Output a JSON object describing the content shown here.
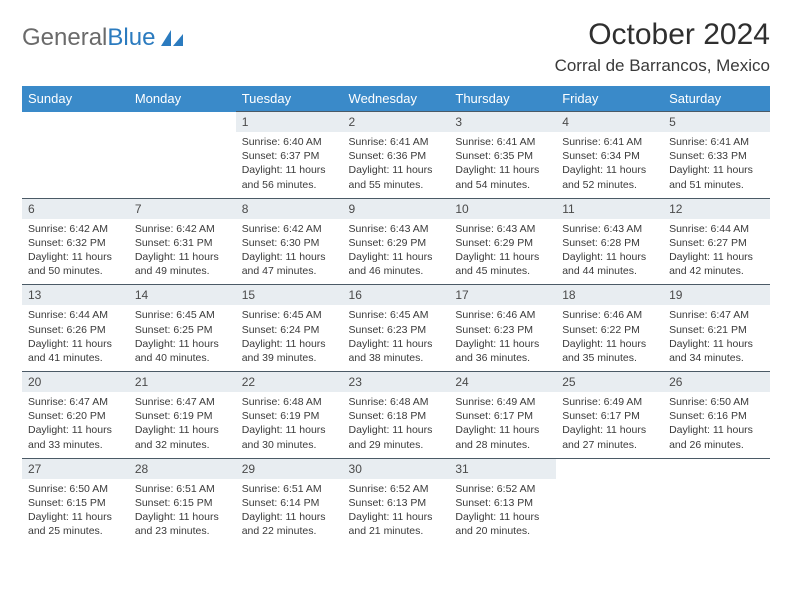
{
  "logo": {
    "text1": "General",
    "text2": "Blue"
  },
  "title": "October 2024",
  "location": "Corral de Barrancos, Mexico",
  "colors": {
    "header_bg": "#3a8ac9",
    "header_text": "#ffffff",
    "daynum_bg": "#e8edf1",
    "border": "#4b5a66",
    "logo_gray": "#6a6a6a",
    "logo_blue": "#2b7bbf"
  },
  "weekdays": [
    "Sunday",
    "Monday",
    "Tuesday",
    "Wednesday",
    "Thursday",
    "Friday",
    "Saturday"
  ],
  "weeks": [
    [
      null,
      null,
      {
        "n": "1",
        "sr": "Sunrise: 6:40 AM",
        "ss": "Sunset: 6:37 PM",
        "d1": "Daylight: 11 hours",
        "d2": "and 56 minutes."
      },
      {
        "n": "2",
        "sr": "Sunrise: 6:41 AM",
        "ss": "Sunset: 6:36 PM",
        "d1": "Daylight: 11 hours",
        "d2": "and 55 minutes."
      },
      {
        "n": "3",
        "sr": "Sunrise: 6:41 AM",
        "ss": "Sunset: 6:35 PM",
        "d1": "Daylight: 11 hours",
        "d2": "and 54 minutes."
      },
      {
        "n": "4",
        "sr": "Sunrise: 6:41 AM",
        "ss": "Sunset: 6:34 PM",
        "d1": "Daylight: 11 hours",
        "d2": "and 52 minutes."
      },
      {
        "n": "5",
        "sr": "Sunrise: 6:41 AM",
        "ss": "Sunset: 6:33 PM",
        "d1": "Daylight: 11 hours",
        "d2": "and 51 minutes."
      }
    ],
    [
      {
        "n": "6",
        "sr": "Sunrise: 6:42 AM",
        "ss": "Sunset: 6:32 PM",
        "d1": "Daylight: 11 hours",
        "d2": "and 50 minutes."
      },
      {
        "n": "7",
        "sr": "Sunrise: 6:42 AM",
        "ss": "Sunset: 6:31 PM",
        "d1": "Daylight: 11 hours",
        "d2": "and 49 minutes."
      },
      {
        "n": "8",
        "sr": "Sunrise: 6:42 AM",
        "ss": "Sunset: 6:30 PM",
        "d1": "Daylight: 11 hours",
        "d2": "and 47 minutes."
      },
      {
        "n": "9",
        "sr": "Sunrise: 6:43 AM",
        "ss": "Sunset: 6:29 PM",
        "d1": "Daylight: 11 hours",
        "d2": "and 46 minutes."
      },
      {
        "n": "10",
        "sr": "Sunrise: 6:43 AM",
        "ss": "Sunset: 6:29 PM",
        "d1": "Daylight: 11 hours",
        "d2": "and 45 minutes."
      },
      {
        "n": "11",
        "sr": "Sunrise: 6:43 AM",
        "ss": "Sunset: 6:28 PM",
        "d1": "Daylight: 11 hours",
        "d2": "and 44 minutes."
      },
      {
        "n": "12",
        "sr": "Sunrise: 6:44 AM",
        "ss": "Sunset: 6:27 PM",
        "d1": "Daylight: 11 hours",
        "d2": "and 42 minutes."
      }
    ],
    [
      {
        "n": "13",
        "sr": "Sunrise: 6:44 AM",
        "ss": "Sunset: 6:26 PM",
        "d1": "Daylight: 11 hours",
        "d2": "and 41 minutes."
      },
      {
        "n": "14",
        "sr": "Sunrise: 6:45 AM",
        "ss": "Sunset: 6:25 PM",
        "d1": "Daylight: 11 hours",
        "d2": "and 40 minutes."
      },
      {
        "n": "15",
        "sr": "Sunrise: 6:45 AM",
        "ss": "Sunset: 6:24 PM",
        "d1": "Daylight: 11 hours",
        "d2": "and 39 minutes."
      },
      {
        "n": "16",
        "sr": "Sunrise: 6:45 AM",
        "ss": "Sunset: 6:23 PM",
        "d1": "Daylight: 11 hours",
        "d2": "and 38 minutes."
      },
      {
        "n": "17",
        "sr": "Sunrise: 6:46 AM",
        "ss": "Sunset: 6:23 PM",
        "d1": "Daylight: 11 hours",
        "d2": "and 36 minutes."
      },
      {
        "n": "18",
        "sr": "Sunrise: 6:46 AM",
        "ss": "Sunset: 6:22 PM",
        "d1": "Daylight: 11 hours",
        "d2": "and 35 minutes."
      },
      {
        "n": "19",
        "sr": "Sunrise: 6:47 AM",
        "ss": "Sunset: 6:21 PM",
        "d1": "Daylight: 11 hours",
        "d2": "and 34 minutes."
      }
    ],
    [
      {
        "n": "20",
        "sr": "Sunrise: 6:47 AM",
        "ss": "Sunset: 6:20 PM",
        "d1": "Daylight: 11 hours",
        "d2": "and 33 minutes."
      },
      {
        "n": "21",
        "sr": "Sunrise: 6:47 AM",
        "ss": "Sunset: 6:19 PM",
        "d1": "Daylight: 11 hours",
        "d2": "and 32 minutes."
      },
      {
        "n": "22",
        "sr": "Sunrise: 6:48 AM",
        "ss": "Sunset: 6:19 PM",
        "d1": "Daylight: 11 hours",
        "d2": "and 30 minutes."
      },
      {
        "n": "23",
        "sr": "Sunrise: 6:48 AM",
        "ss": "Sunset: 6:18 PM",
        "d1": "Daylight: 11 hours",
        "d2": "and 29 minutes."
      },
      {
        "n": "24",
        "sr": "Sunrise: 6:49 AM",
        "ss": "Sunset: 6:17 PM",
        "d1": "Daylight: 11 hours",
        "d2": "and 28 minutes."
      },
      {
        "n": "25",
        "sr": "Sunrise: 6:49 AM",
        "ss": "Sunset: 6:17 PM",
        "d1": "Daylight: 11 hours",
        "d2": "and 27 minutes."
      },
      {
        "n": "26",
        "sr": "Sunrise: 6:50 AM",
        "ss": "Sunset: 6:16 PM",
        "d1": "Daylight: 11 hours",
        "d2": "and 26 minutes."
      }
    ],
    [
      {
        "n": "27",
        "sr": "Sunrise: 6:50 AM",
        "ss": "Sunset: 6:15 PM",
        "d1": "Daylight: 11 hours",
        "d2": "and 25 minutes."
      },
      {
        "n": "28",
        "sr": "Sunrise: 6:51 AM",
        "ss": "Sunset: 6:15 PM",
        "d1": "Daylight: 11 hours",
        "d2": "and 23 minutes."
      },
      {
        "n": "29",
        "sr": "Sunrise: 6:51 AM",
        "ss": "Sunset: 6:14 PM",
        "d1": "Daylight: 11 hours",
        "d2": "and 22 minutes."
      },
      {
        "n": "30",
        "sr": "Sunrise: 6:52 AM",
        "ss": "Sunset: 6:13 PM",
        "d1": "Daylight: 11 hours",
        "d2": "and 21 minutes."
      },
      {
        "n": "31",
        "sr": "Sunrise: 6:52 AM",
        "ss": "Sunset: 6:13 PM",
        "d1": "Daylight: 11 hours",
        "d2": "and 20 minutes."
      },
      null,
      null
    ]
  ]
}
